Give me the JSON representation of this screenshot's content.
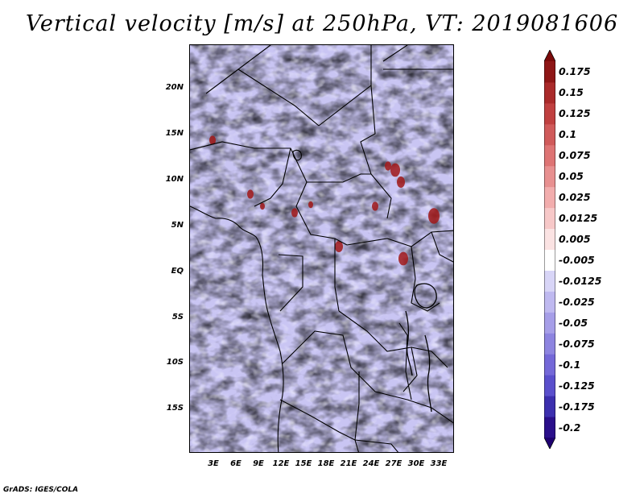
{
  "title": "Vertical velocity [m/s] at 250hPa, VT: 2019081606",
  "map": {
    "lat_labels": [
      "20N",
      "15N",
      "10N",
      "5N",
      "EQ",
      "5S",
      "10S",
      "15S"
    ],
    "lon_labels": [
      "3E",
      "6E",
      "9E",
      "12E",
      "15E",
      "18E",
      "21E",
      "24E",
      "27E",
      "30E",
      "33E"
    ],
    "extent": {
      "lon_min": 0,
      "lon_max": 35,
      "lat_min": -20,
      "lat_max": 24.5
    }
  },
  "colorbar": {
    "colors": [
      "#2a0f8a",
      "#3c2fae",
      "#5a4fcc",
      "#7468d8",
      "#8d84e0",
      "#a69ee8",
      "#bfb9f0",
      "#d8d5f7",
      "#ffffff",
      "#fbe3e3",
      "#f7c8c8",
      "#f2adad",
      "#e89090",
      "#de7474",
      "#d05a5a",
      "#c04040",
      "#aa2a2a",
      "#8e1616"
    ],
    "labels": [
      "0.175",
      "0.15",
      "0.125",
      "0.1",
      "0.075",
      "0.05",
      "0.025",
      "0.0125",
      "0.005",
      "-0.005",
      "-0.0125",
      "-0.025",
      "-0.05",
      "-0.075",
      "-0.1",
      "-0.125",
      "-0.175",
      "-0.2"
    ]
  },
  "credit": "GrADS: IGES/COLA"
}
